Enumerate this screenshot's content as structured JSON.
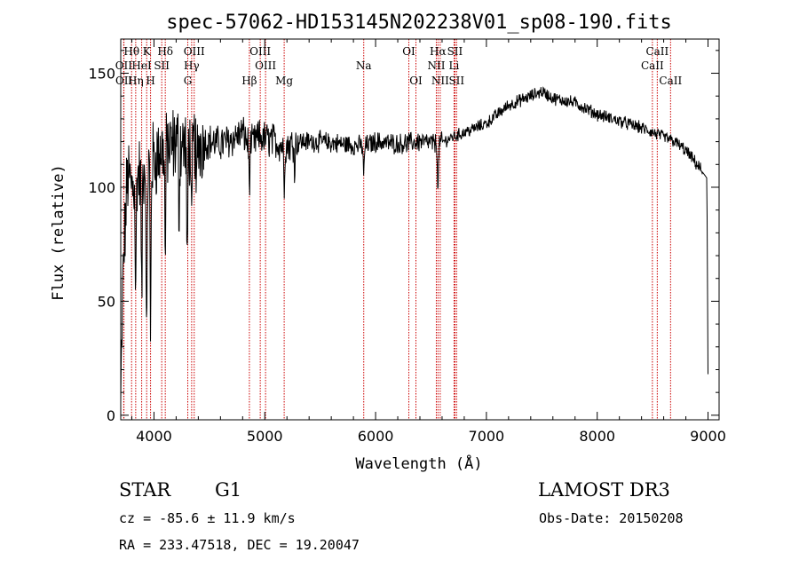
{
  "chart_data": {
    "type": "line",
    "title": "spec-57062-HD153145N202238V01_sp08-190.fits",
    "xlabel": "Wavelength (Å)",
    "ylabel": "Flux (relative)",
    "xlim": [
      3700,
      9100
    ],
    "ylim": [
      -2,
      165
    ],
    "xticks": [
      4000,
      5000,
      6000,
      7000,
      8000,
      9000
    ],
    "yticks": [
      0,
      50,
      100,
      150
    ],
    "series": [
      {
        "name": "flux",
        "anchors_x": [
          3700,
          3720,
          3760,
          3800,
          3850,
          3900,
          3950,
          4000,
          4050,
          4100,
          4150,
          4200,
          4300,
          4400,
          4500,
          4600,
          4700,
          4800,
          4861,
          4950,
          5100,
          5175,
          5300,
          5500,
          5700,
          5893,
          6000,
          6200,
          6400,
          6563,
          6700,
          6800,
          7000,
          7200,
          7400,
          7500,
          7600,
          7800,
          8000,
          8200,
          8400,
          8600,
          8700,
          8800,
          8900,
          8960,
          8990,
          9000
        ],
        "anchors_y": [
          3,
          60,
          105,
          100,
          105,
          108,
          110,
          112,
          115,
          118,
          117,
          120,
          118,
          120,
          120,
          119,
          121,
          124,
          118,
          122,
          120,
          118,
          120,
          120,
          119,
          118,
          120,
          119,
          120,
          119,
          122,
          124,
          128,
          136,
          140,
          142,
          139,
          137,
          132,
          129,
          126,
          122,
          120,
          116,
          110,
          106,
          104,
          18
        ],
        "noise": [
          {
            "from": 3700,
            "to": 4450,
            "amplitude": 16
          },
          {
            "from": 4450,
            "to": 5300,
            "amplitude": 7
          },
          {
            "from": 5300,
            "to": 6600,
            "amplitude": 4
          },
          {
            "from": 6600,
            "to": 8950,
            "amplitude": 2.5
          }
        ],
        "absorption_lines": [
          {
            "x": 3835,
            "depth": 55
          },
          {
            "x": 3889,
            "depth": 60
          },
          {
            "x": 3934,
            "depth": 85
          },
          {
            "x": 3969,
            "depth": 80
          },
          {
            "x": 4102,
            "depth": 50
          },
          {
            "x": 4227,
            "depth": 30
          },
          {
            "x": 4300,
            "depth": 60
          },
          {
            "x": 4340,
            "depth": 45
          },
          {
            "x": 4384,
            "depth": 25
          },
          {
            "x": 4861,
            "depth": 18
          },
          {
            "x": 5175,
            "depth": 18
          },
          {
            "x": 5270,
            "depth": 10
          },
          {
            "x": 5893,
            "depth": 14
          },
          {
            "x": 6563,
            "depth": 22
          }
        ]
      }
    ],
    "line_marks": [
      {
        "name": "Hθ",
        "x": 3798,
        "row": 0
      },
      {
        "name": "K",
        "x": 3934,
        "row": 0
      },
      {
        "name": "Hδ",
        "x": 4102,
        "row": 0
      },
      {
        "name": "OIII",
        "x": 4363,
        "row": 0
      },
      {
        "name": "OIII",
        "x": 4959,
        "row": 0
      },
      {
        "name": "OI",
        "x": 6300,
        "row": 0
      },
      {
        "name": "Hα",
        "x": 6563,
        "row": 0
      },
      {
        "name": "SII",
        "x": 6716,
        "row": 0
      },
      {
        "name": "CaII",
        "x": 8542,
        "row": 0
      },
      {
        "name": "OII",
        "x": 3727,
        "row": 1
      },
      {
        "name": "HeI",
        "x": 3889,
        "row": 1
      },
      {
        "name": "SII",
        "x": 4070,
        "row": 1
      },
      {
        "name": "Hγ",
        "x": 4340,
        "row": 1
      },
      {
        "name": "OIII",
        "x": 5007,
        "row": 1
      },
      {
        "name": "Na",
        "x": 5893,
        "row": 1
      },
      {
        "name": "NII",
        "x": 6548,
        "row": 1
      },
      {
        "name": "Li",
        "x": 6708,
        "row": 1
      },
      {
        "name": "CaII",
        "x": 8498,
        "row": 1
      },
      {
        "name": "OII",
        "x": 3729,
        "row": 2
      },
      {
        "name": "Hη",
        "x": 3835,
        "row": 2
      },
      {
        "name": "H",
        "x": 3969,
        "row": 2
      },
      {
        "name": "G",
        "x": 4305,
        "row": 2
      },
      {
        "name": "Hβ",
        "x": 4861,
        "row": 2
      },
      {
        "name": "Mg",
        "x": 5175,
        "row": 2
      },
      {
        "name": "OI",
        "x": 6364,
        "row": 2
      },
      {
        "name": "NII",
        "x": 6583,
        "row": 2
      },
      {
        "name": "SII",
        "x": 6731,
        "row": 2
      },
      {
        "name": "CaII",
        "x": 8662,
        "row": 2
      }
    ],
    "line_color": "#cc0000",
    "curve_color": "#000000"
  },
  "info": {
    "class": "STAR",
    "subclass": "G1",
    "survey": "LAMOST DR3",
    "cz": "cz = -85.6 ± 11.9 km/s",
    "obs_date": "Obs-Date: 20150208",
    "coords": "RA = 233.47518, DEC =  19.20047"
  }
}
